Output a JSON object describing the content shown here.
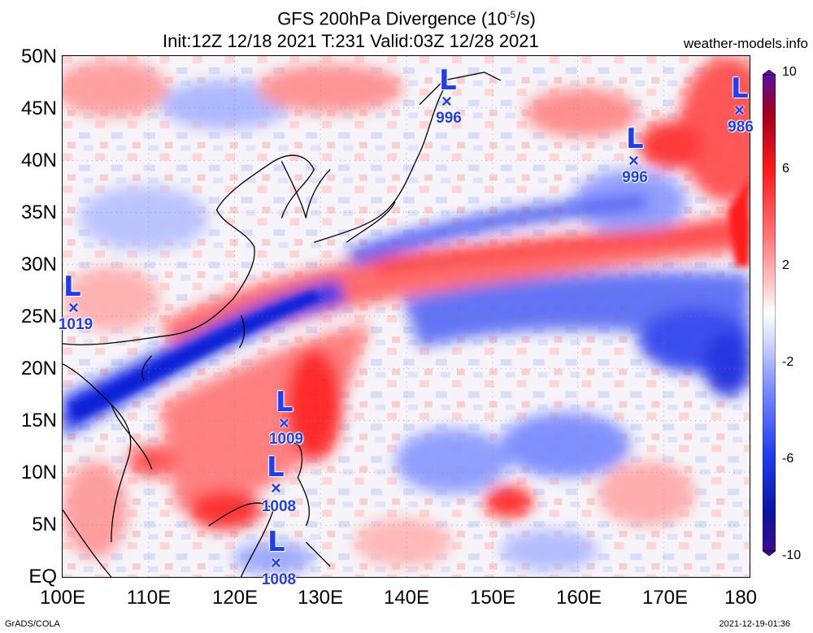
{
  "header": {
    "title_line1_prefix": "GFS 200hPa Divergence (10",
    "title_line1_sup": "-5",
    "title_line1_suffix": "/s)",
    "title_line2": "Init:12Z 12/18 2021 T:231 Valid:03Z 12/28 2021",
    "site": "weather-models.info"
  },
  "axes": {
    "lat_labels": [
      "50N",
      "45N",
      "40N",
      "35N",
      "30N",
      "25N",
      "20N",
      "15N",
      "10N",
      "5N",
      "EQ"
    ],
    "lon_labels": [
      "100E",
      "110E",
      "120E",
      "130E",
      "140E",
      "150E",
      "160E",
      "170E",
      "180"
    ]
  },
  "colorbar": {
    "labels": [
      "10",
      "6",
      "2",
      "-2",
      "-6",
      "-10"
    ],
    "colors": [
      "#5a0fa0",
      "#c8001e",
      "#ff1a1a",
      "#ff7878",
      "#ffc8c8",
      "#ffffff",
      "#c8d2ff",
      "#7a8cff",
      "#1e3cf0",
      "#0a14a0",
      "#3c0c8c"
    ]
  },
  "systems": [
    {
      "letter": "L",
      "pressure": "1019",
      "lon": 101.5,
      "lat": 26
    },
    {
      "letter": "L",
      "pressure": "996",
      "lon": 145,
      "lat": 45.5
    },
    {
      "letter": "L",
      "pressure": "996",
      "lon": 166.5,
      "lat": 40
    },
    {
      "letter": "L",
      "pressure": "986",
      "lon": 179,
      "lat": 44.5
    },
    {
      "letter": "L",
      "pressure": "1009",
      "lon": 126,
      "lat": 14.5
    },
    {
      "letter": "L",
      "pressure": "1008",
      "lon": 125,
      "lat": 8.5
    },
    {
      "letter": "L",
      "pressure": "1008",
      "lon": 125,
      "lat": 1.5
    }
  ],
  "footer": {
    "left": "GrADS/COLA",
    "right": "2021-12-19-01:36"
  }
}
